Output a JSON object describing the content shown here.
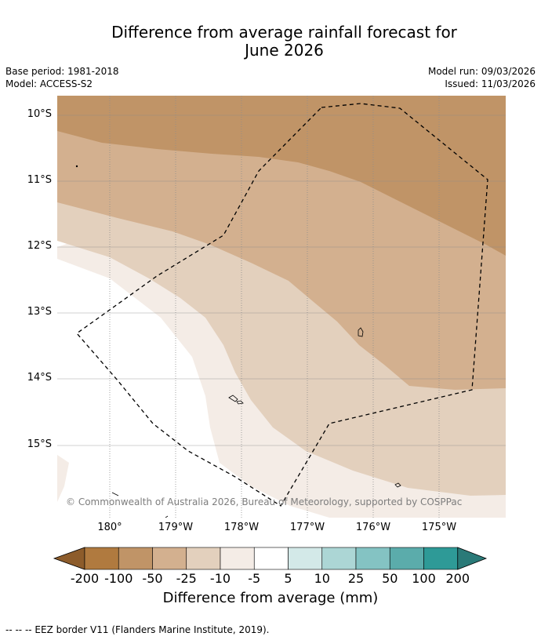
{
  "title_line1": "Difference from average rainfall forecast for",
  "title_line2": "June 2026",
  "base_period": "Base period: 1981-2018",
  "model": "Model: ACCESS-S2",
  "model_run": "Model run: 09/03/2026",
  "issued": "Issued: 11/03/2026",
  "lat_labels": [
    "10°S",
    "11°S",
    "12°S",
    "13°S",
    "14°S",
    "15°S"
  ],
  "lon_labels": [
    "180°",
    "179°W",
    "178°W",
    "177°W",
    "176°W",
    "175°W"
  ],
  "copyright": "© Commonwealth of Australia 2026, Bureau of Meteorology, supported by COSPPac",
  "colorbar": {
    "ticks": [
      "-200",
      "-100",
      "-50",
      "-25",
      "-10",
      "-5",
      "5",
      "10",
      "25",
      "50",
      "100",
      "200"
    ],
    "colors": [
      "#8d5c2b",
      "#b07a3f",
      "#c09467",
      "#d3b08f",
      "#e3d0bd",
      "#f4ece6",
      "#ffffff",
      "#d3e9e8",
      "#acd6d5",
      "#84c3c3",
      "#5bacab",
      "#2e9a97",
      "#2a7a78"
    ],
    "label": "Difference from average (mm)"
  },
  "footer": "--  --  -- EEZ border V11 (Flanders Marine Institute, 2019)."
}
